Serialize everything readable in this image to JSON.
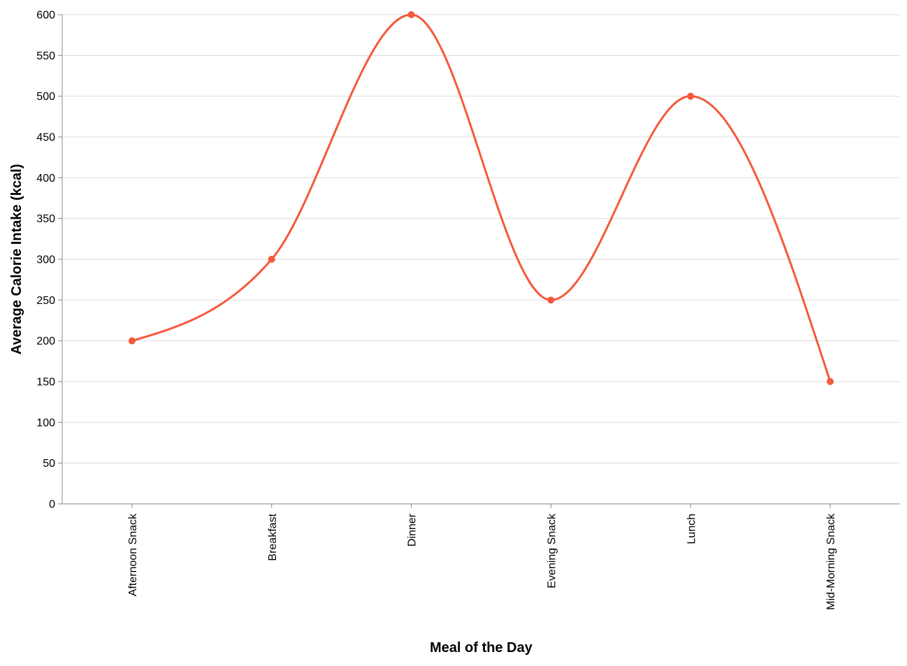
{
  "chart_data": {
    "type": "line",
    "title": "",
    "xlabel": "Meal of the Day",
    "ylabel": "Average Calorie Intake (kcal)",
    "categories": [
      "Afternoon Snack",
      "Breakfast",
      "Dinner",
      "Evening Snack",
      "Lunch",
      "Mid-Morning Snack"
    ],
    "values": [
      200,
      300,
      600,
      250,
      500,
      150
    ],
    "ylim": [
      0,
      600
    ],
    "yticks": [
      0,
      50,
      100,
      150,
      200,
      250,
      300,
      350,
      400,
      450,
      500,
      550,
      600
    ],
    "grid": true,
    "interpolation": "monotone",
    "line_color": "#f5593c",
    "point_color": "#f5593c"
  }
}
